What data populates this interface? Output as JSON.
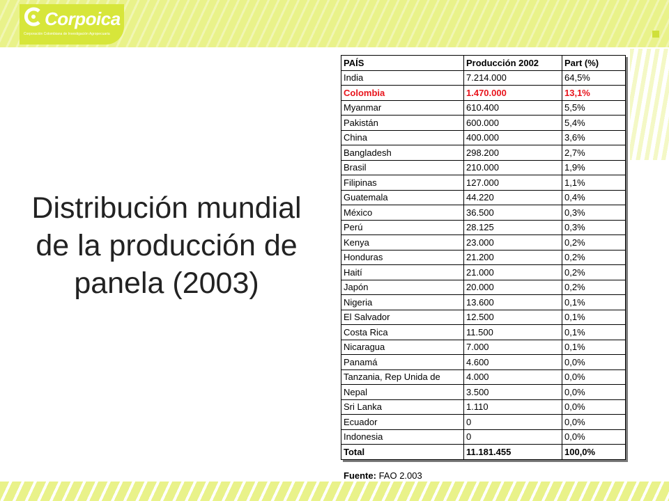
{
  "logo": {
    "name": "Corpoica",
    "subtitle": "Corporación Colombiana de Investigación Agropecuaria"
  },
  "colors": {
    "highlight": "#e8141c",
    "brand_green": "#d7e63a",
    "banner": "#e9f28a"
  },
  "title": {
    "line1": "Distribución mundial",
    "line2": "de la producción de",
    "line3": "panela (2003)"
  },
  "table": {
    "headers": [
      "PAÍS",
      "Producción 2002",
      "Part (%)"
    ],
    "rows": [
      [
        "India",
        "7.214.000",
        "64,5%"
      ],
      [
        "Colombia",
        "1.470.000",
        "13,1%"
      ],
      [
        "Myanmar",
        "610.400",
        "5,5%"
      ],
      [
        "Pakistán",
        "600.000",
        "5,4%"
      ],
      [
        "China",
        "400.000",
        "3,6%"
      ],
      [
        "Bangladesh",
        "298.200",
        "2,7%"
      ],
      [
        "Brasil",
        "210.000",
        "1,9%"
      ],
      [
        "Filipinas",
        "127.000",
        "1,1%"
      ],
      [
        "Guatemala",
        "44.220",
        "0,4%"
      ],
      [
        "México",
        "36.500",
        "0,3%"
      ],
      [
        "Perú",
        "28.125",
        "0,3%"
      ],
      [
        "Kenya",
        "23.000",
        "0,2%"
      ],
      [
        "Honduras",
        "21.200",
        "0,2%"
      ],
      [
        "Haití",
        "21.000",
        "0,2%"
      ],
      [
        "Japón",
        "20.000",
        "0,2%"
      ],
      [
        "Nigeria",
        "13.600",
        "0,1%"
      ],
      [
        "El Salvador",
        "12.500",
        "0,1%"
      ],
      [
        "Costa Rica",
        "11.500",
        "0,1%"
      ],
      [
        "Nicaragua",
        "7.000",
        "0,1%"
      ],
      [
        "Panamá",
        "4.600",
        "0,0%"
      ],
      [
        "Tanzania, Rep Unida de",
        "4.000",
        "0,0%"
      ],
      [
        "Nepal",
        "3.500",
        "0,0%"
      ],
      [
        "Sri Lanka",
        "1.110",
        "0,0%"
      ],
      [
        "Ecuador",
        "0",
        "0,0%"
      ],
      [
        "Indonesia",
        "0",
        "0,0%"
      ]
    ],
    "highlight_row": "Colombia",
    "total": [
      "Total",
      "11.181.455",
      "100,0%"
    ]
  },
  "source": {
    "label": "Fuente:",
    "text": "FAO 2.003"
  }
}
